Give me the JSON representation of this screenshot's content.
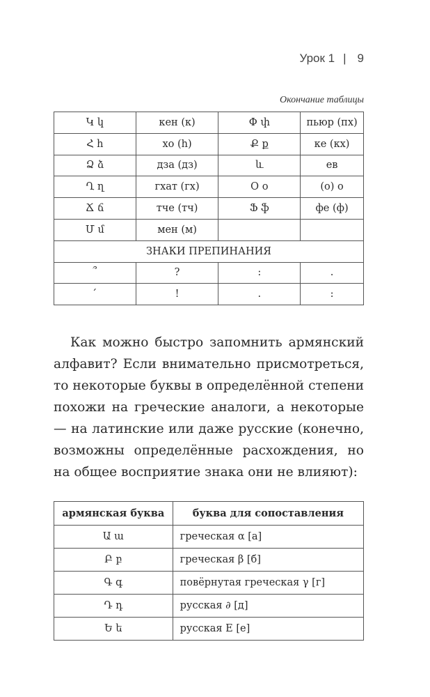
{
  "header": {
    "section": "Урок 1",
    "separator": "|",
    "page_number": "9"
  },
  "table1": {
    "caption": "Окончание таблицы",
    "rows": [
      [
        "Կ կ",
        "кен (к)",
        "Փ փ",
        "пьюр (пх)"
      ],
      [
        "Հ հ",
        "хо (h)",
        "Ք ք",
        "ке (кх)"
      ],
      [
        "Ձ ձ",
        "дза (дз)",
        "և",
        "ев"
      ],
      [
        "Ղ ղ",
        "гхат (гх)",
        "Օ օ",
        "(о) о"
      ],
      [
        "Ճ ճ",
        "тче (тч)",
        "Ֆ ֆ",
        "фе (ф)"
      ],
      [
        "Մ մ",
        "мен (м)",
        "",
        ""
      ]
    ],
    "section_title": "ЗНАКИ ПРЕПИНАНИЯ",
    "punct_rows": [
      [
        "՞",
        "?",
        ":",
        "."
      ],
      [
        "՛",
        "!",
        ".",
        ":"
      ]
    ]
  },
  "paragraph": "Как можно быстро запомнить армянский алфавит? Если внимательно присмотреться, то некоторые буквы в определённой степени похожи на греческие аналоги, а некоторые — на латинские или даже русские (конечно, возможны определённые расхождения, но на общее восприятие знака они не влияют):",
  "table2": {
    "headers": [
      "армянская буква",
      "буква для сопоставления"
    ],
    "rows": [
      [
        "Ա ա",
        "греческая α [а]"
      ],
      [
        "Բ բ",
        "греческая β [б]"
      ],
      [
        "Գ գ",
        "повёрнутая греческая γ [г]"
      ],
      [
        "Դ դ",
        "русская ∂ [д]"
      ],
      [
        "Ե ե",
        "русская Е [е]"
      ]
    ]
  }
}
